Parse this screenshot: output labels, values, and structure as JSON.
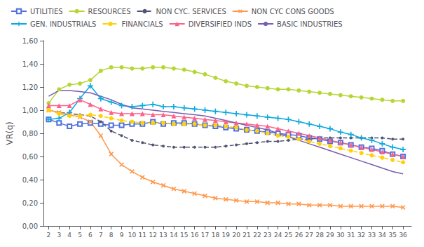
{
  "chart_data": {
    "type": "line",
    "y_label": "VR(q)",
    "x": [
      2,
      3,
      4,
      5,
      6,
      7,
      8,
      9,
      10,
      11,
      12,
      13,
      14,
      15,
      16,
      17,
      18,
      19,
      20,
      21,
      22,
      23,
      24,
      25,
      26,
      27,
      28,
      29,
      30,
      31,
      32,
      33,
      34,
      35,
      36
    ],
    "xlim": [
      1.5,
      36.8
    ],
    "xticks": [
      2,
      3,
      4,
      5,
      6,
      7,
      8,
      9,
      10,
      11,
      12,
      13,
      14,
      15,
      16,
      17,
      18,
      19,
      20,
      21,
      22,
      23,
      24,
      25,
      26,
      27,
      28,
      29,
      30,
      31,
      32,
      33,
      34,
      35,
      36
    ],
    "ylim": [
      0.0,
      1.6
    ],
    "yticks": [
      {
        "value": 0.0,
        "label": "0,00"
      },
      {
        "value": 0.2,
        "label": "0,20"
      },
      {
        "value": 0.4,
        "label": "0,40"
      },
      {
        "value": 0.6,
        "label": "0,60"
      },
      {
        "value": 0.8,
        "label": "0,80"
      },
      {
        "value": 1.0,
        "label": "1,00"
      },
      {
        "value": 1.2,
        "label": "1,20"
      },
      {
        "value": 1.4,
        "label": "1,40"
      },
      {
        "value": 1.6,
        "label": "1,60"
      }
    ],
    "grid": false,
    "legend": "upper left",
    "series": [
      {
        "name": "UTILITIES",
        "marker": "square-open",
        "line_style": "solid",
        "values": [
          0.92,
          0.89,
          0.86,
          0.88,
          0.89,
          0.88,
          0.87,
          0.87,
          0.88,
          0.88,
          0.9,
          0.88,
          0.89,
          0.89,
          0.88,
          0.87,
          0.86,
          0.85,
          0.84,
          0.83,
          0.82,
          0.81,
          0.8,
          0.79,
          0.78,
          0.76,
          0.75,
          0.73,
          0.72,
          0.7,
          0.68,
          0.67,
          0.65,
          0.62,
          0.6
        ]
      },
      {
        "name": "RESOURCES",
        "marker": "circle",
        "line_style": "solid",
        "values": [
          1.06,
          1.18,
          1.22,
          1.23,
          1.26,
          1.34,
          1.37,
          1.37,
          1.36,
          1.36,
          1.37,
          1.37,
          1.36,
          1.35,
          1.33,
          1.31,
          1.28,
          1.25,
          1.23,
          1.21,
          1.2,
          1.19,
          1.18,
          1.18,
          1.17,
          1.16,
          1.15,
          1.14,
          1.13,
          1.12,
          1.11,
          1.1,
          1.09,
          1.08,
          1.08
        ]
      },
      {
        "name": "NON CYC. SERVICES",
        "marker": "dot",
        "line_style": "dashed",
        "values": [
          1.0,
          0.98,
          0.97,
          0.96,
          0.95,
          0.9,
          0.82,
          0.78,
          0.74,
          0.72,
          0.7,
          0.69,
          0.68,
          0.68,
          0.68,
          0.68,
          0.68,
          0.69,
          0.7,
          0.71,
          0.72,
          0.73,
          0.73,
          0.74,
          0.75,
          0.75,
          0.76,
          0.76,
          0.76,
          0.76,
          0.76,
          0.76,
          0.76,
          0.75,
          0.75
        ]
      },
      {
        "name": "NON CYC CONS GOODS",
        "marker": "x",
        "line_style": "solid",
        "values": [
          1.0,
          0.98,
          0.96,
          0.94,
          0.9,
          0.78,
          0.62,
          0.53,
          0.47,
          0.42,
          0.38,
          0.35,
          0.32,
          0.3,
          0.28,
          0.26,
          0.24,
          0.23,
          0.22,
          0.21,
          0.21,
          0.2,
          0.2,
          0.19,
          0.19,
          0.18,
          0.18,
          0.18,
          0.17,
          0.17,
          0.17,
          0.17,
          0.17,
          0.17,
          0.16
        ]
      },
      {
        "name": "GEN. INDUSTRIALS",
        "marker": "plus",
        "line_style": "solid",
        "values": [
          0.92,
          0.93,
          0.98,
          1.1,
          1.21,
          1.1,
          1.07,
          1.04,
          1.03,
          1.04,
          1.05,
          1.03,
          1.03,
          1.02,
          1.01,
          1.0,
          0.99,
          0.98,
          0.97,
          0.96,
          0.95,
          0.94,
          0.93,
          0.92,
          0.9,
          0.88,
          0.86,
          0.84,
          0.81,
          0.79,
          0.76,
          0.74,
          0.71,
          0.68,
          0.66
        ]
      },
      {
        "name": "FINANCIALS",
        "marker": "circle",
        "line_style": "dashed",
        "values": [
          1.0,
          0.97,
          0.95,
          0.95,
          0.96,
          0.95,
          0.93,
          0.91,
          0.9,
          0.89,
          0.89,
          0.89,
          0.88,
          0.88,
          0.88,
          0.87,
          0.87,
          0.86,
          0.85,
          0.83,
          0.82,
          0.8,
          0.78,
          0.77,
          0.75,
          0.73,
          0.71,
          0.69,
          0.67,
          0.65,
          0.63,
          0.61,
          0.59,
          0.57,
          0.55
        ]
      },
      {
        "name": "DIVERSIFIED INDS",
        "marker": "triangle",
        "line_style": "solid",
        "values": [
          1.04,
          1.04,
          1.04,
          1.09,
          1.05,
          1.01,
          0.98,
          0.97,
          0.97,
          0.97,
          0.96,
          0.96,
          0.95,
          0.94,
          0.93,
          0.92,
          0.91,
          0.9,
          0.89,
          0.88,
          0.87,
          0.86,
          0.84,
          0.82,
          0.8,
          0.78,
          0.76,
          0.74,
          0.72,
          0.7,
          0.68,
          0.66,
          0.64,
          0.62,
          0.6
        ]
      },
      {
        "name": "BASIC INDUSTRIES",
        "marker": "none",
        "line_style": "solid",
        "values": [
          1.12,
          1.17,
          1.17,
          1.16,
          1.15,
          1.12,
          1.09,
          1.05,
          1.02,
          1.01,
          1.0,
          0.99,
          0.98,
          0.97,
          0.96,
          0.95,
          0.93,
          0.91,
          0.89,
          0.87,
          0.85,
          0.83,
          0.8,
          0.77,
          0.74,
          0.71,
          0.68,
          0.65,
          0.62,
          0.59,
          0.56,
          0.53,
          0.5,
          0.47,
          0.45
        ]
      }
    ]
  }
}
